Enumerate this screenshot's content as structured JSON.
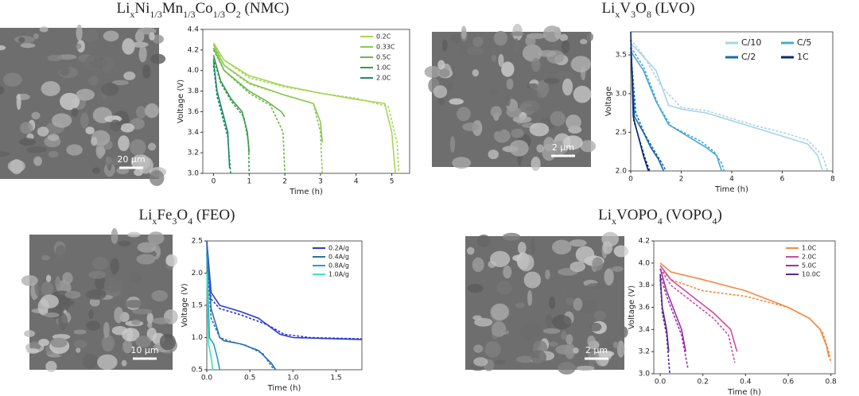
{
  "chart_data": [
    {
      "type": "line",
      "title": [
        "Li",
        "x",
        "Ni",
        "1/3",
        "Mn",
        "1/3",
        "Co",
        "1/3",
        "O",
        "2",
        " (NMC)"
      ],
      "scale_bar": "20 μm",
      "x_label": "Time (h)",
      "y_label": "Voltage (V)",
      "legend": "upper right",
      "xlim": [
        -0.3,
        5.5
      ],
      "xticks": [
        0,
        1,
        2,
        3,
        4,
        5
      ],
      "ylim": [
        3.0,
        4.4
      ],
      "yticks": [
        {
          "value": 3.0,
          "label": "3.0"
        },
        {
          "value": 3.2,
          "label": "3.2"
        },
        {
          "value": 3.4,
          "label": "3.4"
        },
        {
          "value": 3.6,
          "label": "3.6"
        },
        {
          "value": 3.8,
          "label": "3.8"
        },
        {
          "value": 4.0,
          "label": "4.0"
        },
        {
          "value": 4.2,
          "label": "4.2"
        },
        {
          "value": 4.4,
          "label": "4.4"
        }
      ],
      "series": [
        {
          "name": "0.2C",
          "color": "#a8d45a",
          "x": [
            0,
            0.3,
            1,
            2,
            3,
            4,
            4.8,
            5.0,
            5.1
          ],
          "values": [
            4.27,
            4.1,
            3.95,
            3.85,
            3.78,
            3.72,
            3.68,
            3.4,
            3.0
          ],
          "dashed": {
            "x": [
              0,
              0.3,
              1,
              2,
              3,
              4,
              4.9,
              5.15,
              5.2
            ],
            "values": [
              4.25,
              4.1,
              3.93,
              3.84,
              3.78,
              3.73,
              3.65,
              3.3,
              3.0
            ]
          }
        },
        {
          "name": "0.33C",
          "color": "#8cc850",
          "x": [
            0,
            0.3,
            1,
            2,
            2.8,
            3.0,
            3.05
          ],
          "values": [
            4.25,
            4.05,
            3.88,
            3.76,
            3.68,
            3.5,
            3.3
          ],
          "dashed": {
            "x": [
              0,
              0.3,
              1,
              2,
              2.8,
              3.0,
              3.05
            ],
            "values": [
              4.22,
              4.05,
              3.87,
              3.76,
              3.68,
              3.4,
              3.0
            ]
          }
        },
        {
          "name": "0.5C",
          "color": "#6cb848",
          "x": [
            0,
            0.3,
            1,
            1.5,
            1.9,
            2.0
          ],
          "values": [
            4.22,
            4.0,
            3.8,
            3.7,
            3.6,
            3.55
          ],
          "dashed": {
            "x": [
              0,
              0.3,
              1,
              1.6,
              1.95,
              2.0
            ],
            "values": [
              4.2,
              4.0,
              3.78,
              3.66,
              3.4,
              3.0
            ]
          }
        },
        {
          "name": "1.0C",
          "color": "#3a9a50",
          "x": [
            0,
            0.2,
            0.5,
            0.8,
            0.95,
            1.0
          ],
          "values": [
            4.15,
            3.9,
            3.72,
            3.6,
            3.4,
            3.2
          ],
          "dashed": {
            "x": [
              0,
              0.2,
              0.5,
              0.85,
              0.98,
              1.0
            ],
            "values": [
              4.12,
              3.88,
              3.7,
              3.55,
              3.3,
              3.0
            ]
          }
        },
        {
          "name": "2.0C",
          "color": "#1f8a6a",
          "x": [
            0,
            0.1,
            0.25,
            0.4,
            0.45
          ],
          "values": [
            4.1,
            3.8,
            3.6,
            3.4,
            3.05
          ],
          "dashed": {
            "x": [
              0,
              0.1,
              0.25,
              0.4,
              0.48
            ],
            "values": [
              4.05,
              3.75,
              3.55,
              3.35,
              3.0
            ]
          }
        }
      ]
    },
    {
      "type": "line",
      "title": [
        "Li",
        "x",
        "V",
        "3",
        "O",
        "8",
        " (LVO)"
      ],
      "scale_bar": "2 μm",
      "x_label": "Time (h)",
      "y_label": "Voltage",
      "legend": "upper right",
      "xlim": [
        0,
        8
      ],
      "xticks": [
        0,
        2,
        4,
        6,
        8
      ],
      "ylim": [
        2.0,
        3.8
      ],
      "yticks": [
        {
          "value": 2.0,
          "label": "2.0"
        },
        2.5,
        {
          "value": 3.0,
          "label": "3.0"
        },
        3.5
      ],
      "series": [
        {
          "name": "C/10",
          "color": "#a8d4e8",
          "x": [
            0,
            0.3,
            1,
            1.5,
            2,
            3,
            4,
            5,
            6,
            7,
            7.4,
            7.6
          ],
          "values": [
            3.65,
            3.55,
            3.3,
            2.85,
            2.8,
            2.75,
            2.65,
            2.55,
            2.45,
            2.35,
            2.2,
            2.0
          ],
          "dashed": {
            "x": [
              0,
              0.5,
              1.2,
              2,
              3,
              4,
              5,
              6,
              7,
              7.6,
              7.8
            ],
            "values": [
              3.7,
              3.5,
              3.1,
              2.82,
              2.78,
              2.68,
              2.58,
              2.5,
              2.4,
              2.2,
              2.0
            ]
          }
        },
        {
          "name": "C/5",
          "color": "#4aa8d4",
          "x": [
            0,
            0.5,
            1,
            1.5,
            2,
            2.5,
            3,
            3.4,
            3.6
          ],
          "values": [
            3.55,
            3.3,
            2.9,
            2.6,
            2.5,
            2.4,
            2.3,
            2.2,
            2.0
          ],
          "dashed": {
            "x": [
              0,
              0.5,
              1.1,
              1.6,
              2.2,
              2.8,
              3.3,
              3.6,
              3.7
            ],
            "values": [
              3.6,
              3.35,
              2.85,
              2.58,
              2.48,
              2.38,
              2.25,
              2.1,
              2.0
            ]
          }
        },
        {
          "name": "C/2",
          "color": "#1a6aaa",
          "x": [
            0,
            0.15,
            0.5,
            0.8,
            1.1,
            1.3
          ],
          "values": [
            3.6,
            2.7,
            2.5,
            2.3,
            2.15,
            2.0
          ],
          "dashed": {
            "x": [
              0,
              0.2,
              0.55,
              0.9,
              1.2,
              1.4
            ],
            "values": [
              3.55,
              2.75,
              2.48,
              2.28,
              2.12,
              2.0
            ]
          }
        },
        {
          "name": "1C",
          "color": "#0a2a6a",
          "x": [
            0,
            0.1,
            0.3,
            0.5,
            0.7
          ],
          "values": [
            3.8,
            2.7,
            2.45,
            2.2,
            2.0
          ],
          "dashed": {
            "x": [
              0,
              0.12,
              0.35,
              0.55,
              0.75
            ],
            "values": [
              3.7,
              2.65,
              2.4,
              2.18,
              2.0
            ]
          }
        }
      ]
    },
    {
      "type": "line",
      "title": [
        "Li",
        "x",
        "Fe",
        "3",
        "O",
        "4",
        " (FEO)"
      ],
      "scale_bar": "10 μm",
      "x_label": "Time (h)",
      "y_label": "Voltage (V)",
      "legend": "upper right",
      "xlim": [
        0,
        1.8
      ],
      "xticks": [
        {
          "value": 0,
          "label": "0.0"
        },
        0.5,
        {
          "value": 1,
          "label": "1.0"
        },
        1.5
      ],
      "ylim": [
        0.5,
        2.5
      ],
      "yticks": [
        0.5,
        {
          "value": 1,
          "label": "1.0"
        },
        1.5,
        {
          "value": 2,
          "label": "2.0"
        },
        2.5
      ],
      "series": [
        {
          "name": "0.2A/g",
          "color": "#2a3ad0",
          "x": [
            0,
            0.05,
            0.15,
            0.4,
            0.6,
            0.85,
            1.0,
            1.5,
            1.8
          ],
          "values": [
            2.5,
            1.7,
            1.5,
            1.4,
            1.3,
            1.05,
            1.0,
            0.98,
            0.97
          ],
          "dashed": {
            "x": [
              0,
              0.05,
              0.15,
              0.4,
              0.7,
              0.9,
              1.2,
              1.8
            ],
            "values": [
              2.4,
              1.6,
              1.45,
              1.35,
              1.2,
              1.05,
              1.0,
              0.98
            ]
          }
        },
        {
          "name": "0.4A/g",
          "color": "#2a70b0",
          "x": [
            0,
            0.05,
            0.15,
            0.2,
            0.4,
            0.6,
            0.75,
            0.8
          ],
          "values": [
            2.45,
            1.45,
            1.0,
            0.95,
            0.9,
            0.8,
            0.6,
            0.5
          ],
          "dashed": {
            "x": [
              0,
              0.05,
              0.15,
              0.25,
              0.45,
              0.65,
              0.78
            ],
            "values": [
              2.3,
              1.3,
              1.0,
              0.95,
              0.88,
              0.75,
              0.5
            ]
          }
        },
        {
          "name": "0.8A/g",
          "color": "#20a0c0",
          "x": [
            0,
            0.03,
            0.08,
            0.12,
            0.15
          ],
          "values": [
            2.3,
            1.0,
            0.9,
            0.7,
            0.5
          ]
        },
        {
          "name": "1.0A/g",
          "color": "#40e0c0",
          "x": [
            0,
            0.02,
            0.05,
            0.07
          ],
          "values": [
            2.0,
            0.9,
            0.7,
            0.5
          ]
        }
      ]
    },
    {
      "type": "line",
      "title": [
        "Li",
        "x",
        "VOPO",
        "4",
        " (VOPO",
        "4",
        ")"
      ],
      "scale_bar": "2 μm",
      "x_label": "Time (h)",
      "y_label": "Voltage (V)",
      "legend": "upper right",
      "xlim": [
        -0.03,
        0.82
      ],
      "xticks": [
        {
          "value": 0,
          "label": "0.0"
        },
        0.2,
        0.4,
        0.6,
        0.8
      ],
      "ylim": [
        3.0,
        4.2
      ],
      "yticks": [
        {
          "value": 3.0,
          "label": "3.0"
        },
        3.2,
        3.4,
        3.6,
        3.8,
        {
          "value": 4.0,
          "label": "4.0"
        },
        4.2
      ],
      "series": [
        {
          "name": "1.0C",
          "color": "#f08a40",
          "x": [
            0,
            0.05,
            0.2,
            0.4,
            0.6,
            0.7,
            0.75,
            0.78,
            0.79
          ],
          "values": [
            4.0,
            3.92,
            3.85,
            3.75,
            3.6,
            3.5,
            3.4,
            3.25,
            3.15
          ],
          "dashed": {
            "x": [
              0,
              0.05,
              0.2,
              0.4,
              0.6,
              0.7,
              0.76,
              0.79,
              0.8
            ],
            "values": [
              3.95,
              3.85,
              3.75,
              3.7,
              3.6,
              3.5,
              3.38,
              3.2,
              3.1
            ]
          }
        },
        {
          "name": "2.0C",
          "color": "#d04aa0",
          "x": [
            0,
            0.05,
            0.15,
            0.25,
            0.33,
            0.36
          ],
          "values": [
            3.98,
            3.85,
            3.7,
            3.55,
            3.4,
            3.2
          ],
          "dashed": {
            "x": [
              0,
              0.05,
              0.15,
              0.25,
              0.32,
              0.35
            ],
            "values": [
              3.95,
              3.8,
              3.65,
              3.5,
              3.35,
              3.1
            ]
          }
        },
        {
          "name": "5.0C",
          "color": "#9a30a8",
          "x": [
            0,
            0.03,
            0.07,
            0.1,
            0.12
          ],
          "values": [
            3.95,
            3.75,
            3.55,
            3.4,
            3.2
          ],
          "dashed": {
            "x": [
              0,
              0.03,
              0.07,
              0.1,
              0.13
            ],
            "values": [
              3.9,
              3.7,
              3.5,
              3.35,
              3.05
            ]
          }
        },
        {
          "name": "10.0C",
          "color": "#5a2a8a",
          "x": [
            0,
            0.01,
            0.03,
            0.04
          ],
          "values": [
            3.9,
            3.6,
            3.4,
            3.2
          ],
          "dashed": {
            "x": [
              0,
              0.01,
              0.03,
              0.045
            ],
            "values": [
              3.85,
              3.55,
              3.35,
              3.0
            ]
          }
        }
      ]
    }
  ]
}
